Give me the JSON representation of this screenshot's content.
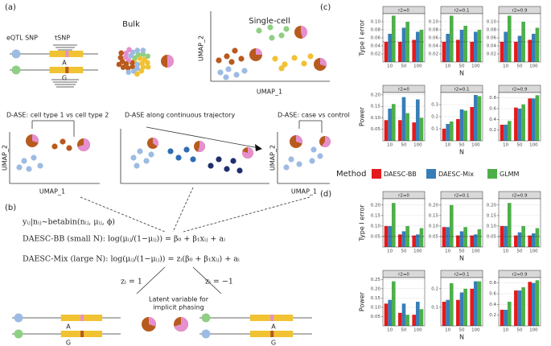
{
  "diagram": {
    "panel_a": {
      "label": "(a)",
      "eqtl_snp": "eQTL SNP",
      "tsnp": "tSNP",
      "allele_top": "A",
      "allele_bottom": "G",
      "bulk": "Bulk",
      "single_cell": "Single-cell",
      "umap_y": "UMAP_2",
      "umap_x": "UMAP_1",
      "scenarios": [
        {
          "title": "D-ASE: cell type 1 vs cell type 2",
          "umap_y": "UMAP_2",
          "umap_x": "UMAP_1"
        },
        {
          "title": "D-ASE along continuous trajectory"
        },
        {
          "title": "D-ASE: case vs control",
          "umap_y": "UMAP_2",
          "umap_x": "UMAP_1"
        }
      ]
    },
    "panel_b": {
      "label": "(b)",
      "model": "yᵢⱼ|nᵢⱼ~betabin(nᵢⱼ, μᵢⱼ, ϕ)",
      "bb": "DAESC-BB (small N): log(μᵢⱼ/(1−μᵢⱼ)) = β₀ + β₁xᵢⱼ + aᵢ",
      "mix": "DAESC-Mix (large N): log(μᵢⱼ/(1−μᵢⱼ)) = zᵢ(β₀ + β₁xᵢⱼ) + aᵢ",
      "z_pos": "zᵢ = 1",
      "z_neg": "zᵢ = −1",
      "latent": [
        "Latent variable for",
        "implicit phasing"
      ],
      "alleles": [
        [
          "A",
          "G"
        ],
        [
          "A",
          "G"
        ]
      ]
    }
  },
  "panel_labels": [
    "(c)",
    "(d)"
  ],
  "legend": {
    "title": "Method",
    "series": [
      {
        "name": "DAESC-BB",
        "color": "#e41a1c"
      },
      {
        "name": "DAESC-Mix",
        "color": "#377eb8"
      },
      {
        "name": "GLMM",
        "color": "#4daf4a"
      }
    ]
  },
  "chart_data": [
    {
      "type": "bar",
      "ylabel": "Type I error",
      "xlabel": "N",
      "categories": [
        10,
        50,
        100
      ],
      "hline": 0.05,
      "grid": true,
      "facets": [
        {
          "title": "r2=0",
          "ylim": [
            0,
            0.12
          ],
          "yticks": [
            0.02,
            0.04,
            0.06,
            0.08,
            {
              "value": 0.1,
              "label": "0.10"
            }
          ],
          "values": [
            [
              0.05,
              0.05,
              0.055
            ],
            [
              0.07,
              0.085,
              0.075
            ],
            [
              0.115,
              0.1,
              0.08
            ]
          ]
        },
        {
          "title": "r2=0.1",
          "ylim": [
            0,
            0.12
          ],
          "yticks": [
            0.02,
            0.04,
            0.06,
            0.08,
            {
              "value": 0.1,
              "label": "0.10"
            }
          ],
          "values": [
            [
              0.05,
              0.055,
              0.05
            ],
            [
              0.07,
              0.08,
              0.075
            ],
            [
              0.115,
              0.09,
              0.08
            ]
          ]
        },
        {
          "title": "r2=0.9",
          "ylim": [
            0,
            0.12
          ],
          "yticks": [
            0.02,
            0.04,
            0.06,
            0.08,
            {
              "value": 0.1,
              "label": "0.10"
            }
          ],
          "values": [
            [
              0.05,
              0.05,
              0.055
            ],
            [
              0.075,
              0.065,
              0.07
            ],
            [
              0.115,
              0.1,
              0.085
            ]
          ]
        }
      ]
    },
    {
      "type": "bar",
      "ylabel": "Power",
      "xlabel": "N",
      "categories": [
        10,
        50,
        100
      ],
      "grid": true,
      "facets": [
        {
          "title": "r2=0",
          "ylim": [
            0,
            0.21
          ],
          "yticks": [
            0.05,
            {
              "value": 0.1,
              "label": "0.10"
            },
            0.15,
            {
              "value": 0.2,
              "label": "0.20"
            }
          ],
          "values": [
            [
              0.09,
              0.09,
              0.08
            ],
            [
              0.14,
              0.19,
              0.18
            ],
            [
              0.16,
              0.12,
              0.1
            ]
          ]
        },
        {
          "title": "r2=0.1",
          "ylim": [
            0,
            0.4
          ],
          "yticks": [
            0.1,
            0.2,
            0.3
          ],
          "values": [
            [
              0.1,
              0.18,
              0.28
            ],
            [
              0.14,
              0.26,
              0.38
            ],
            [
              0.16,
              0.25,
              0.37
            ]
          ]
        },
        {
          "title": "r2=0.9",
          "ylim": [
            0,
            0.9
          ],
          "yticks": [
            0.2,
            0.4,
            0.6,
            0.8
          ],
          "values": [
            [
              0.3,
              0.62,
              0.79
            ],
            [
              0.3,
              0.6,
              0.79
            ],
            [
              0.37,
              0.68,
              0.85
            ]
          ]
        }
      ]
    },
    {
      "type": "bar",
      "ylabel": "Type I error",
      "xlabel": "N",
      "categories": [
        10,
        50,
        100
      ],
      "hline": 0.05,
      "grid": true,
      "facets": [
        {
          "title": "r2=0",
          "ylim": [
            0,
            0.23
          ],
          "yticks": [
            0.05,
            {
              "value": 0.1,
              "label": "0.10"
            },
            0.15,
            {
              "value": 0.2,
              "label": "0.20"
            }
          ],
          "values": [
            [
              0.1,
              0.06,
              0.055
            ],
            [
              0.1,
              0.075,
              0.06
            ],
            [
              0.21,
              0.1,
              0.09
            ]
          ]
        },
        {
          "title": "r2=0.1",
          "ylim": [
            0,
            0.23
          ],
          "yticks": [
            0.05,
            {
              "value": 0.1,
              "label": "0.10"
            },
            0.15,
            {
              "value": 0.2,
              "label": "0.20"
            }
          ],
          "values": [
            [
              0.095,
              0.055,
              0.055
            ],
            [
              0.095,
              0.075,
              0.06
            ],
            [
              0.2,
              0.095,
              0.085
            ]
          ]
        },
        {
          "title": "r2=0.9",
          "ylim": [
            0,
            0.23
          ],
          "yticks": [
            0.05,
            {
              "value": 0.1,
              "label": "0.10"
            },
            0.15,
            {
              "value": 0.2,
              "label": "0.20"
            }
          ],
          "values": [
            [
              0.1,
              0.055,
              0.055
            ],
            [
              0.1,
              0.07,
              0.065
            ],
            [
              0.21,
              0.1,
              0.09
            ]
          ]
        }
      ]
    },
    {
      "type": "bar",
      "ylabel": "Power",
      "xlabel": "N",
      "categories": [
        10,
        50,
        100
      ],
      "grid": true,
      "facets": [
        {
          "title": "r2=0",
          "ylim": [
            0,
            0.26
          ],
          "yticks": [
            0.05,
            {
              "value": 0.1,
              "label": "0.10"
            },
            0.15,
            {
              "value": 0.2,
              "label": "0.20"
            },
            0.25
          ],
          "values": [
            [
              0.12,
              0.07,
              0.06
            ],
            [
              0.14,
              0.12,
              0.13
            ],
            [
              0.24,
              0.06,
              0.09
            ]
          ]
        },
        {
          "title": "r2=0.1",
          "ylim": [
            0,
            0.26
          ],
          "yticks": [
            0.1,
            0.2
          ],
          "values": [
            [
              0.13,
              0.14,
              0.2
            ],
            [
              0.14,
              0.18,
              0.24
            ],
            [
              0.23,
              0.2,
              0.24
            ]
          ]
        },
        {
          "title": "r2=0.9",
          "ylim": [
            0,
            0.9
          ],
          "yticks": [
            0.2,
            0.4,
            0.6,
            0.8
          ],
          "values": [
            [
              0.3,
              0.66,
              0.82
            ],
            [
              0.3,
              0.66,
              0.8
            ],
            [
              0.45,
              0.72,
              0.85
            ]
          ]
        }
      ]
    }
  ]
}
